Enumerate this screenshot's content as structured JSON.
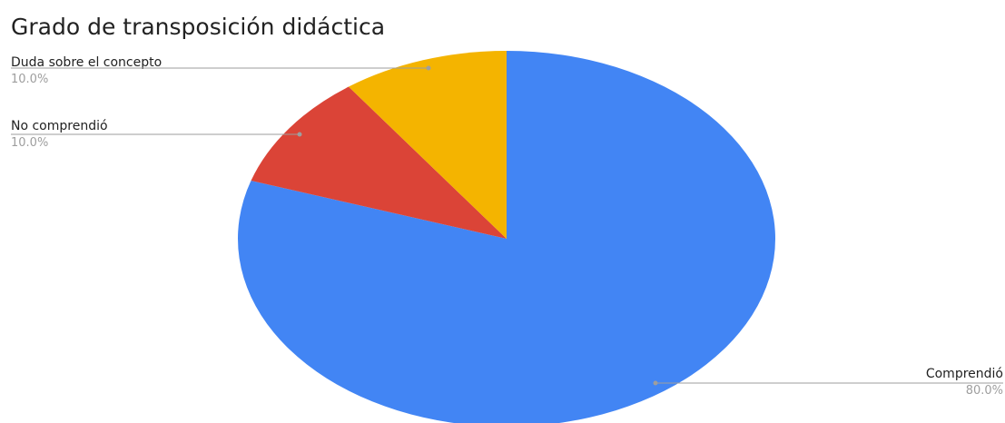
{
  "chart_data": {
    "type": "pie",
    "title": "Grado de transposición didáctica",
    "slices": [
      {
        "label": "Comprendió",
        "value": 80.0,
        "percent_label": "80.0%",
        "color": "#4285f4",
        "legend_side": "right"
      },
      {
        "label": "No comprendió",
        "value": 10.0,
        "percent_label": "10.0%",
        "color": "#db4437",
        "legend_side": "left"
      },
      {
        "label": "Duda sobre el concepto",
        "value": 10.0,
        "percent_label": "10.0%",
        "color": "#f4b400",
        "legend_side": "left"
      }
    ],
    "start_angle": "12 o'clock",
    "direction": "clockwise",
    "legend": "labels-with-leader-lines"
  }
}
